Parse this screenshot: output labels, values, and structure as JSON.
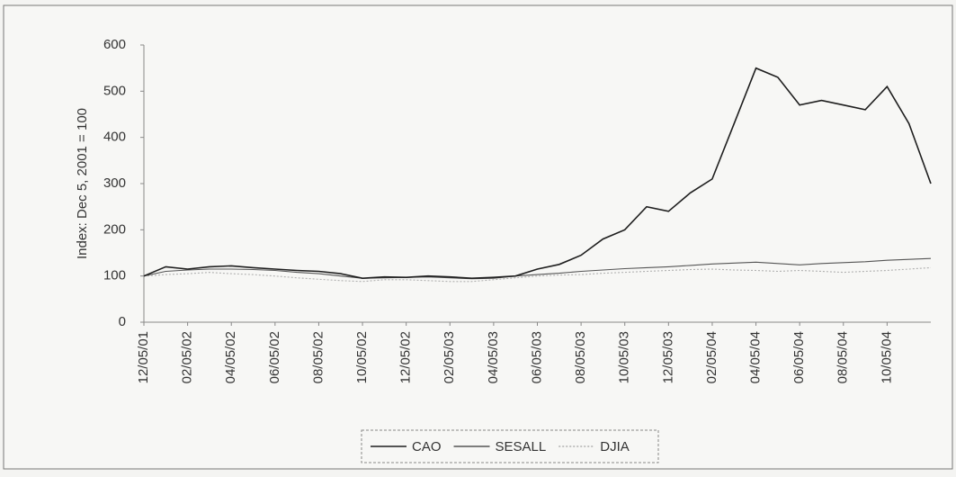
{
  "chart_data": {
    "type": "line",
    "ylabel": "Index: Dec 5, 2001 = 100",
    "categories": [
      "12/05/01",
      null,
      "02/05/02",
      null,
      "04/05/02",
      null,
      "06/05/02",
      null,
      "08/05/02",
      null,
      "10/05/02",
      null,
      "12/05/02",
      null,
      "02/05/03",
      null,
      "04/05/03",
      null,
      "06/05/03",
      null,
      "08/05/03",
      null,
      "10/05/03",
      null,
      "12/05/03",
      null,
      "02/05/04",
      null,
      "04/05/04",
      null,
      "06/05/04",
      null,
      "08/05/04",
      null,
      "10/05/04",
      null,
      null
    ],
    "series": [
      {
        "name": "CAO",
        "color": "#1e1e1e",
        "values": [
          100,
          120,
          115,
          120,
          122,
          118,
          115,
          112,
          110,
          105,
          95,
          98,
          97,
          100,
          98,
          95,
          97,
          100,
          115,
          125,
          145,
          180,
          200,
          250,
          240,
          280,
          310,
          430,
          550,
          530,
          470,
          480,
          470,
          460,
          510,
          430,
          300
        ]
      },
      {
        "name": "SESALL",
        "color": "#555555",
        "values": [
          100,
          110,
          113,
          115,
          115,
          114,
          112,
          108,
          105,
          100,
          95,
          96,
          97,
          98,
          96,
          94,
          95,
          100,
          103,
          106,
          110,
          113,
          116,
          118,
          120,
          123,
          126,
          128,
          130,
          127,
          124,
          127,
          129,
          131,
          134,
          136,
          138
        ]
      },
      {
        "name": "DJIA",
        "color": "#b0b0b0",
        "values": [
          100,
          103,
          105,
          108,
          105,
          103,
          100,
          96,
          93,
          90,
          88,
          92,
          92,
          90,
          88,
          88,
          92,
          96,
          100,
          102,
          103,
          106,
          108,
          110,
          112,
          114,
          115,
          113,
          112,
          110,
          112,
          110,
          108,
          110,
          112,
          115,
          118
        ]
      }
    ],
    "ylim": [
      0,
      600
    ],
    "yticks": [
      0,
      100,
      200,
      300,
      400,
      500,
      600
    ],
    "grid": false,
    "legend": "bottom"
  }
}
